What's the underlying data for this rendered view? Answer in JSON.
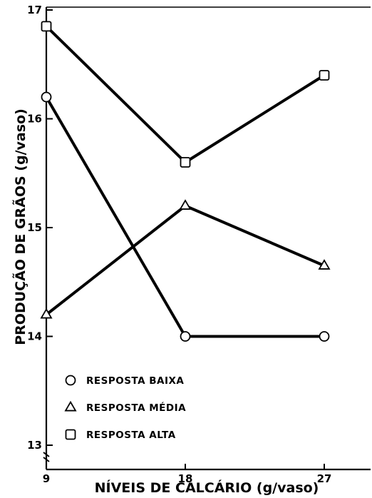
{
  "chart_data": {
    "type": "line",
    "xlabel": "NÍVEIS DE CALCÁRIO (g/vaso)",
    "ylabel": "PRODUÇÃO DE GRÃOS (g/vaso)",
    "xlim": [
      9,
      30
    ],
    "ylim": [
      13,
      17
    ],
    "x_ticks": [
      9,
      18,
      27
    ],
    "x_tick_labels": [
      "9",
      "18",
      "27"
    ],
    "y_ticks": [
      13,
      14,
      15,
      16,
      17
    ],
    "y_tick_labels": [
      "13",
      "14",
      "15",
      "16",
      "17"
    ],
    "grid": false,
    "legend_position": "bottom-left",
    "x": [
      9,
      18,
      27
    ],
    "series": [
      {
        "name": "RESPOSTA BAIXA",
        "marker": "circle",
        "values": [
          16.2,
          14.0,
          14.0
        ]
      },
      {
        "name": "RESPOSTA MÉDIA",
        "marker": "triangle",
        "values": [
          14.2,
          15.2,
          14.65
        ]
      },
      {
        "name": "RESPOSTA ALTA",
        "marker": "square",
        "values": [
          16.85,
          15.6,
          16.4
        ]
      }
    ],
    "colors": {
      "line": "#000000",
      "marker_fill": "#ffffff"
    }
  }
}
